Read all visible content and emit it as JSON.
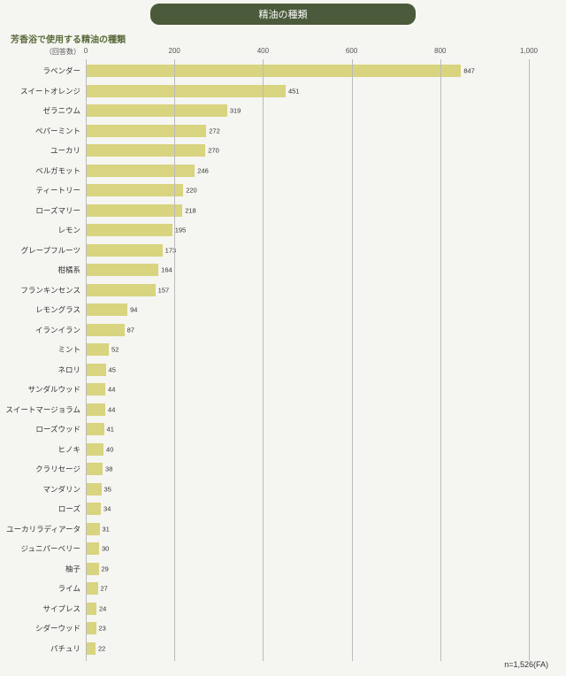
{
  "title": "精油の種類",
  "subtitle": "芳香浴で使用する精油の種類",
  "y_axis_caption": "（回答数）",
  "footnote": "n=1,526(FA)",
  "chart": {
    "type": "bar",
    "orientation": "horizontal",
    "xlim": [
      0,
      1000
    ],
    "xtick_step": 200,
    "xticks": [
      0,
      200,
      400,
      600,
      800,
      "1,000"
    ],
    "bar_color": "#d8d480",
    "background_color": "#f5f5f1",
    "grid_color": "#bbbbbb",
    "label_fontsize": 8.5,
    "value_fontsize": 7.5,
    "row_height": 22.5,
    "data": [
      {
        "label": "ラベンダー",
        "value": 847
      },
      {
        "label": "スイートオレンジ",
        "value": 451
      },
      {
        "label": "ゼラニウム",
        "value": 319
      },
      {
        "label": "ペパーミント",
        "value": 272
      },
      {
        "label": "ユーカリ",
        "value": 270
      },
      {
        "label": "ベルガモット",
        "value": 246
      },
      {
        "label": "ティートリー",
        "value": 220
      },
      {
        "label": "ローズマリー",
        "value": 218
      },
      {
        "label": "レモン",
        "value": 195
      },
      {
        "label": "グレープフルーツ",
        "value": 173
      },
      {
        "label": "柑橘系",
        "value": 164
      },
      {
        "label": "フランキンセンス",
        "value": 157
      },
      {
        "label": "レモングラス",
        "value": 94
      },
      {
        "label": "イランイラン",
        "value": 87
      },
      {
        "label": "ミント",
        "value": 52
      },
      {
        "label": "ネロリ",
        "value": 45
      },
      {
        "label": "サンダルウッド",
        "value": 44
      },
      {
        "label": "スイートマージョラム",
        "value": 44
      },
      {
        "label": "ローズウッド",
        "value": 41
      },
      {
        "label": "ヒノキ",
        "value": 40
      },
      {
        "label": "クラリセージ",
        "value": 38
      },
      {
        "label": "マンダリン",
        "value": 35
      },
      {
        "label": "ローズ",
        "value": 34
      },
      {
        "label": "ユーカリラディアータ",
        "value": 31
      },
      {
        "label": "ジュニパーベリー",
        "value": 30
      },
      {
        "label": "柚子",
        "value": 29
      },
      {
        "label": "ライム",
        "value": 27
      },
      {
        "label": "サイプレス",
        "value": 24
      },
      {
        "label": "シダーウッド",
        "value": 23
      },
      {
        "label": "パチュリ",
        "value": 22
      }
    ]
  }
}
